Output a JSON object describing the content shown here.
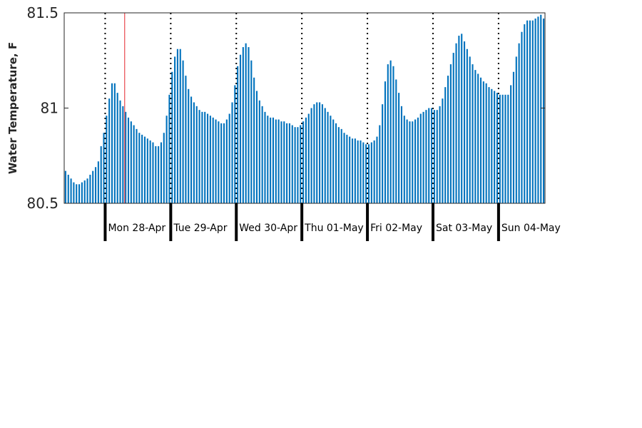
{
  "chart_data": {
    "type": "bar",
    "title": "",
    "xlabel": "",
    "ylabel": "Water Temperature, F",
    "ylim": [
      80.5,
      81.5
    ],
    "yticks": [
      "80.5",
      "81",
      "81.5"
    ],
    "x_start": "Sun 27-Apr 09:00",
    "x_end": "Sun 04-May 16:00",
    "interval": "1 hour",
    "day_labels": [
      "Mon 28-Apr",
      "Tue 29-Apr",
      "Wed 30-Apr",
      "Thu 01-May",
      "Fri 02-May",
      "Sat 03-May",
      "Sun 04-May"
    ],
    "current_time_marker": "Mon 28-Apr 07:00",
    "bar_color": "#0072bd",
    "marker_color": "#e8494f",
    "series": [
      {
        "values": [
          80.67,
          80.65,
          80.63,
          80.61,
          80.6,
          80.6,
          80.61,
          80.62,
          80.63,
          80.65,
          80.67,
          80.69,
          80.72,
          80.8,
          80.87,
          80.96,
          81.05,
          81.13,
          81.13,
          81.08,
          81.04,
          81.01,
          80.98,
          80.95,
          80.93,
          80.91,
          80.89,
          80.87,
          80.86,
          80.85,
          80.84,
          80.83,
          80.82,
          80.8,
          80.8,
          80.82,
          80.87,
          80.96,
          81.07,
          81.19,
          81.27,
          81.31,
          81.31,
          81.25,
          81.17,
          81.1,
          81.06,
          81.03,
          81.01,
          80.99,
          80.98,
          80.98,
          80.97,
          80.96,
          80.95,
          80.94,
          80.93,
          80.92,
          80.92,
          80.94,
          80.97,
          81.03,
          81.12,
          81.22,
          81.28,
          81.32,
          81.34,
          81.32,
          81.25,
          81.16,
          81.09,
          81.04,
          81.01,
          80.98,
          80.96,
          80.95,
          80.95,
          80.94,
          80.94,
          80.93,
          80.93,
          80.92,
          80.92,
          80.91,
          80.9,
          80.9,
          80.91,
          80.93,
          80.95,
          80.97,
          81.0,
          81.02,
          81.03,
          81.03,
          81.02,
          81.0,
          80.98,
          80.96,
          80.94,
          80.92,
          80.9,
          80.89,
          80.87,
          80.86,
          80.85,
          80.84,
          80.84,
          80.83,
          80.83,
          80.82,
          80.81,
          80.81,
          80.82,
          80.83,
          80.85,
          80.91,
          81.02,
          81.14,
          81.23,
          81.25,
          81.22,
          81.15,
          81.08,
          81.01,
          80.96,
          80.94,
          80.93,
          80.93,
          80.94,
          80.95,
          80.97,
          80.98,
          80.99,
          81.0,
          81.0,
          80.99,
          80.99,
          81.01,
          81.05,
          81.11,
          81.17,
          81.23,
          81.29,
          81.34,
          81.38,
          81.39,
          81.35,
          81.31,
          81.27,
          81.23,
          81.2,
          81.18,
          81.16,
          81.14,
          81.13,
          81.11,
          81.1,
          81.09,
          81.08,
          81.07,
          81.07,
          81.07,
          81.07,
          81.12,
          81.19,
          81.27,
          81.34,
          81.4,
          81.44,
          81.46,
          81.46,
          81.46,
          81.47,
          81.48,
          81.49,
          81.47
        ]
      }
    ]
  }
}
